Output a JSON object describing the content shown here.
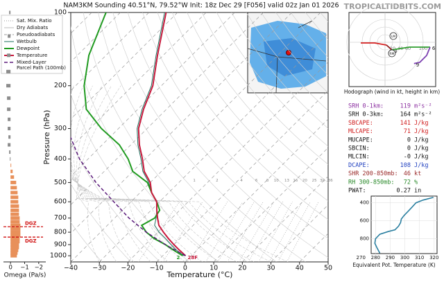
{
  "header": {
    "brand": "TROPICALTIDBITS.COM"
  },
  "chart_data": [
    {
      "type": "skewt",
      "title": "NAM3KM Sounding 40.51°N, 79.52°W Init: 18z Dec 29 [F056] valid 02z Jan 01 2026",
      "xlabel": "Temperature (°C)",
      "ylabel": "Pressure (hPa)",
      "xlim": [
        -40,
        50
      ],
      "ylim": [
        1060,
        100
      ],
      "yscale": "log",
      "xticks": [
        {
          "value": -40,
          "label": "−40"
        },
        {
          "value": -30,
          "label": "−30"
        },
        {
          "value": -20,
          "label": "−20"
        },
        {
          "value": -10,
          "label": "−10"
        },
        0,
        10,
        20,
        30,
        40,
        50
      ],
      "yticks": [
        100,
        200,
        300,
        400,
        500,
        600,
        700,
        800,
        900,
        1000
      ],
      "legend_lines": [
        {
          "name": "Sat. Mix. Ratio",
          "color": "#999999",
          "dash": "1,2"
        },
        {
          "name": "Dry Adiabats",
          "color": "#bbbbbb",
          "dash": "none"
        },
        {
          "name": "Pseudoadiabats",
          "color": "#999999",
          "dash": "4,2"
        }
      ],
      "mixing_ratio_labels": [
        1,
        2,
        4,
        6,
        8,
        10,
        13,
        16,
        20,
        25,
        30,
        36
      ],
      "series": [
        {
          "name": [
            "Wetbulb"
          ],
          "color": "#1d6f5e",
          "width": 1,
          "dash": "none",
          "pressure": [
            1000,
            950,
            900,
            850,
            800,
            750,
            700,
            650,
            600,
            550,
            500,
            450,
            400,
            350,
            300,
            250,
            200,
            150,
            100
          ],
          "values": [
            -2.5,
            -7,
            -11,
            -15,
            -19.5,
            -23.5,
            -25.5,
            -28,
            -31,
            -36,
            -40.5,
            -46.5,
            -51.5,
            -57.5,
            -63.5,
            -68.5,
            -73.5,
            -82.5,
            -94.5
          ]
        },
        {
          "name": [
            "Dewpoint"
          ],
          "color": "#1f9a1f",
          "width": 2,
          "dash": "none",
          "surface_label": "2",
          "pressure": [
            1000,
            950,
            900,
            850,
            800,
            750,
            700,
            650,
            600,
            550,
            500,
            450,
            400,
            350,
            300,
            250,
            200,
            150,
            100
          ],
          "values": [
            -3,
            -8,
            -13,
            -19,
            -24,
            -28,
            -26,
            -27,
            -31,
            -36,
            -41,
            -50,
            -56,
            -64,
            -76,
            -88,
            -97,
            -106,
            -115
          ]
        },
        {
          "name": [
            "Temperature"
          ],
          "color": "#c8193c",
          "width": 2,
          "dash": "none",
          "surface_label": "28F",
          "pressure": [
            1000,
            950,
            900,
            850,
            800,
            750,
            700,
            650,
            600,
            550,
            500,
            450,
            400,
            350,
            300,
            250,
            200,
            150,
            100
          ],
          "values": [
            -2,
            -6,
            -10,
            -14,
            -18,
            -22,
            -25,
            -28,
            -31,
            -36,
            -40,
            -46,
            -51,
            -57,
            -63,
            -68,
            -73,
            -82,
            -94
          ]
        },
        {
          "name": [
            "Mixed-Layer",
            "Parcel Path (100mb)"
          ],
          "color": "#5a1a7a",
          "width": 1.5,
          "dash": "5,3",
          "pressure": [
            1000,
            900,
            800,
            700,
            600,
            500,
            400,
            300
          ],
          "values": [
            -2,
            -13,
            -24,
            -35,
            -46,
            -59,
            -73,
            -88
          ]
        }
      ]
    },
    {
      "type": "hodograph",
      "caption": "Hodograph (wind in kt, height in km)",
      "rings": [
        20,
        40,
        60,
        100
      ],
      "segments": [
        {
          "color": "#d62020",
          "u": [
            -63.6,
            -27,
            3.6
          ],
          "v": [
            -1.8,
            -1.8,
            -7.3
          ]
        },
        {
          "color": "#8b1a1a",
          "u": [
            3.6,
            18
          ],
          "v": [
            -7.3,
            -20
          ],
          "label": "3"
        },
        {
          "color": "#2e9e2e",
          "u": [
            18,
            63.6,
            118
          ],
          "v": [
            -20,
            -12.7,
            -12.7
          ],
          "label": "6"
        },
        {
          "color": "#7b3fb0",
          "u": [
            118,
            109,
            91,
            76
          ],
          "v": [
            -12.7,
            -34.5,
            -52.7,
            -56
          ],
          "label": "9"
        }
      ],
      "storm_motion": [
        {
          "label": "LM",
          "u": 21.8,
          "v": 16.4
        },
        {
          "label": "RM",
          "u": 18,
          "v": -29
        }
      ]
    },
    {
      "type": "line",
      "xlabel": "Equivalent Pot. Temperature (K)",
      "xlim": [
        277,
        322
      ],
      "ylim": [
        965,
        325
      ],
      "xticks": [
        280,
        290,
        300,
        310,
        320
      ],
      "yticks": [
        400,
        600,
        800
      ],
      "grid": true,
      "color": "#2a7fa0",
      "pressure": [
        960,
        900,
        850,
        800,
        750,
        720,
        700,
        660,
        620,
        580,
        540,
        500,
        450,
        400,
        370,
        340
      ],
      "values": [
        282.9,
        281,
        279.5,
        280,
        282.9,
        288.6,
        293.3,
        295.7,
        297.1,
        297.6,
        299.5,
        301.9,
        304.8,
        307.6,
        312.4,
        319.5
      ],
      "extra_xtick": 270
    },
    {
      "type": "hbar",
      "xlabel": "Omega (Pa/s)",
      "xlim": [
        0.5,
        -2.5
      ],
      "xticks": [
        0,
        {
          "value": -1,
          "label": "−1"
        },
        {
          "value": -2,
          "label": "−2"
        }
      ],
      "color_negative": "#e8905a",
      "color_positive": "#8c8c8c",
      "pressure": [
        1000,
        975,
        950,
        925,
        900,
        875,
        850,
        825,
        800,
        775,
        750,
        725,
        700,
        675,
        650,
        625,
        600,
        575,
        550,
        525,
        500,
        475,
        450,
        425,
        400,
        375,
        350,
        325,
        300,
        275,
        250,
        225,
        200,
        175,
        150,
        125,
        100
      ],
      "values": [
        -0.45,
        -0.5,
        -0.55,
        -0.6,
        -0.6,
        -0.65,
        -0.65,
        -0.7,
        -0.7,
        -0.7,
        -0.7,
        -0.65,
        -0.65,
        -0.6,
        -0.6,
        -0.6,
        -0.55,
        -0.55,
        -0.5,
        -0.45,
        -0.4,
        -0.25,
        -0.15,
        -0.05,
        0.05,
        0.1,
        0.2,
        0.15,
        0.2,
        0.2,
        0.25,
        0.25,
        0.3,
        0.3,
        0.25,
        0.2,
        0.1
      ],
      "dgz": [
        {
          "pressure": 760,
          "label": "DGZ"
        },
        {
          "pressure": 838,
          "label": "DGZ"
        }
      ]
    }
  ],
  "indices": {
    "rows": [
      {
        "label": "SRH 0-1km:",
        "value": "119",
        "unit": "m²s⁻²",
        "color": "#8b2fa0"
      },
      {
        "label": "SRH 0-3km:",
        "value": "164",
        "unit": "m²s⁻²",
        "color": "#111111"
      },
      {
        "label": "SBCAPE:",
        "value": "141",
        "unit": "J/kg",
        "color": "#d01c1c"
      },
      {
        "label": "MLCAPE:",
        "value": "71",
        "unit": "J/kg",
        "color": "#d01c1c"
      },
      {
        "label": "MUCAPE:",
        "value": "0",
        "unit": "J/kg",
        "color": "#111111"
      },
      {
        "label": "SBCIN:",
        "value": "0",
        "unit": "J/kg",
        "color": "#111111"
      },
      {
        "label": "MLCIN:",
        "value": "-0",
        "unit": "J/kg",
        "color": "#111111"
      },
      {
        "label": "DCAPE:",
        "value": "108",
        "unit": "J/kg",
        "color": "#1f3fbf"
      },
      {
        "label": "SHR 200-850mb:",
        "value": "46",
        "unit": "kt",
        "color": "#9a2a2a"
      },
      {
        "label": "RH 300-850mb:",
        "value": "72",
        "unit": "%",
        "color": "#2a8a2a"
      },
      {
        "label": "PWAT:",
        "value": "0.27",
        "unit": "in",
        "color": "#111111"
      }
    ]
  }
}
